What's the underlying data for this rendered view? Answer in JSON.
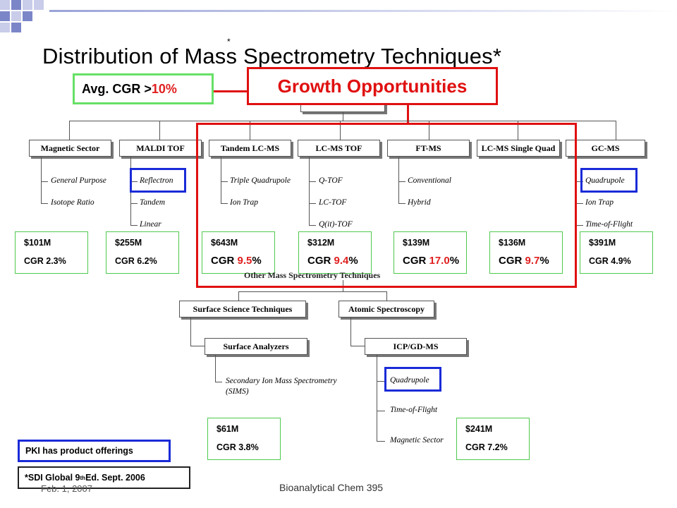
{
  "slide": {
    "title": "Distribution of Mass Spectrometry Techniques*",
    "title_marker": "*",
    "avg_cgr": {
      "prefix": "Avg. CGR >",
      "value": "10%"
    },
    "growth_label": "Growth Opportunities",
    "legend_pki": "PKI has product offerings",
    "footnote": {
      "prefix": "*SDI Global 9",
      "sup": "th",
      "suffix": " Ed. Sept. 2006"
    },
    "footer": {
      "date": "Feb. 1, 2007",
      "course": "Bioanalytical Chem 395"
    }
  },
  "top_row": [
    {
      "label": "Magnetic Sector",
      "subs": [
        "General Purpose",
        "Isotope Ratio"
      ],
      "value": "$101M",
      "cgr_prefix": "CGR ",
      "cgr_num": "2.3",
      "cgr_suffix": "%"
    },
    {
      "label": "MALDI TOF",
      "subs": [
        "Reflectron",
        "Tandem",
        "Linear"
      ],
      "value": "$255M",
      "cgr_prefix": "CGR ",
      "cgr_num": "6.2",
      "cgr_suffix": "%"
    },
    {
      "label": "Tandem LC-MS",
      "subs": [
        "Triple Quadrupole",
        "Ion Trap"
      ],
      "value": "$643M",
      "cgr_prefix": "CGR ",
      "cgr_num": "9.5",
      "cgr_suffix": "%"
    },
    {
      "label": "LC-MS TOF",
      "subs": [
        "Q-TOF",
        "LC-TOF",
        "Q(it)-TOF"
      ],
      "value": "$312M",
      "cgr_prefix": "CGR ",
      "cgr_num": "9.4",
      "cgr_suffix": "%"
    },
    {
      "label": "FT-MS",
      "subs": [
        "Conventional",
        "Hybrid"
      ],
      "value": "$139M",
      "cgr_prefix": "CGR ",
      "cgr_num": "17.0",
      "cgr_suffix": "%"
    },
    {
      "label": "LC-MS Single Quad",
      "subs": [],
      "value": "$136M",
      "cgr_prefix": "CGR ",
      "cgr_num": "9.7",
      "cgr_suffix": "%"
    },
    {
      "label": "GC-MS",
      "subs": [
        "Quadrupole",
        "Ion Trap",
        "Time-of-Flight"
      ],
      "value": "$391M",
      "cgr_prefix": "CGR ",
      "cgr_num": "4.9",
      "cgr_suffix": "%"
    }
  ],
  "other": {
    "label": "Other Mass Spectrometry Techniques",
    "surface": {
      "label": "Surface Science Techniques",
      "child": "Surface Analyzers",
      "subs": [
        "Secondary Ion Mass Spectrometry",
        "(SIMS)"
      ],
      "value": "$61M",
      "cgr": "CGR 3.8%"
    },
    "atomic": {
      "label": "Atomic Spectroscopy",
      "child": "ICP/GD-MS",
      "subs": [
        "Quadrupole",
        "Time-of-Flight",
        "Magnetic Sector"
      ],
      "value": "$241M",
      "cgr": "CGR 7.2%"
    }
  },
  "colors": {
    "growth_red": "#e01010",
    "cgr_red": "#e02020",
    "pki_blue": "#1a2bd8",
    "value_green": "#4ec94e",
    "avg_green": "#66e066"
  }
}
